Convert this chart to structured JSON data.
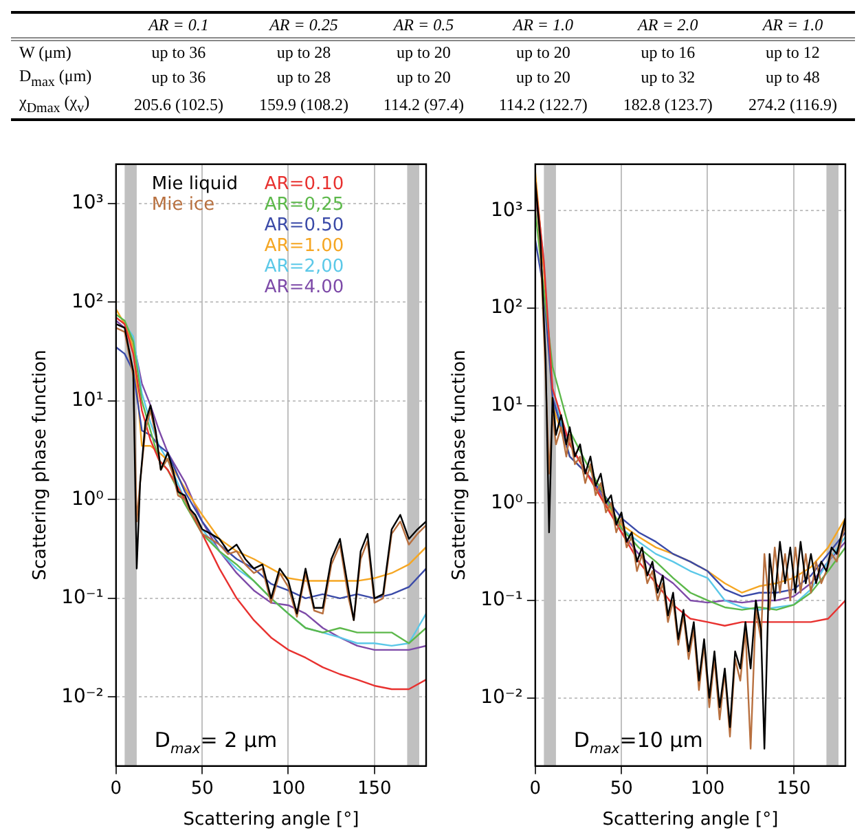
{
  "chart_data": [
    {
      "type": "other",
      "categories": [
        null,
        "AR = 0.1",
        "AR = 0.25",
        "AR = 0.5",
        "AR = 1.0",
        "AR = 2.0",
        "AR = 1.0"
      ],
      "y_categories": [
        "W (μm)",
        "D$_{max}$ (μm)",
        "χ$_{Dmax}$ (χ$_{v}$)"
      ],
      "cell_labels": [
        [
          "up to 36",
          "up to 28",
          "up to 20",
          "up to 20",
          "up to 16",
          "up to 12"
        ],
        [
          "up to 36",
          "up to 28",
          "up to 20",
          "up to 20",
          "up to 32",
          "up to 48"
        ],
        [
          "205.6 (102.5)",
          "159.9 (108.2)",
          "114.2 (97.4)",
          "114.2 (122.7)",
          "182.8 (123.7)",
          "274.2 (116.9)"
        ]
      ]
    },
    {
      "type": "line",
      "xlabel": "Scattering angle [°]",
      "ylabel": "Scattering phase function",
      "log": "y",
      "grid": true,
      "legend": "top",
      "line_style": "solid",
      "marker": "none",
      "xlim": [
        0,
        180
      ],
      "xticks": [
        0,
        50,
        100,
        150
      ],
      "ylim": [
        0.002,
        2500
      ],
      "yticks": [
        {
          "value": 0.01,
          "label": "10⁻²"
        },
        {
          "value": 0.1,
          "label": "10⁻¹"
        },
        {
          "value": 1,
          "label": "10⁰"
        },
        {
          "value": 10,
          "label": "10¹"
        },
        {
          "value": 100,
          "label": "10²"
        },
        {
          "value": 1000,
          "label": "10³"
        }
      ],
      "bands": [
        {
          "axis": "x",
          "from": 5,
          "to": 12,
          "color": "#c0c0c0"
        },
        {
          "axis": "x",
          "from": 169,
          "to": 176,
          "color": "#c0c0c0"
        }
      ],
      "annotations": [
        "D$_{max}$= 2 μm"
      ],
      "x": [
        0,
        5,
        10,
        15,
        20,
        25,
        30,
        40,
        50,
        60,
        70,
        80,
        90,
        100,
        110,
        120,
        130,
        140,
        150,
        160,
        170,
        180
      ],
      "series": [
        {
          "name": "Mie liquid",
          "color": "#000000",
          "x": [
            0,
            5,
            10,
            12,
            14,
            17,
            20,
            23,
            26,
            30,
            33,
            36,
            40,
            43,
            46,
            50,
            55,
            60,
            65,
            70,
            75,
            80,
            85,
            90,
            95,
            100,
            105,
            110,
            115,
            120,
            125,
            130,
            135,
            138,
            142,
            146,
            150,
            155,
            160,
            165,
            170,
            175,
            180
          ],
          "values": [
            60,
            55,
            20,
            0.2,
            1.5,
            6,
            9,
            5,
            2,
            3,
            2,
            1.2,
            1.1,
            0.8,
            0.7,
            0.5,
            0.45,
            0.4,
            0.3,
            0.35,
            0.25,
            0.2,
            0.22,
            0.1,
            0.2,
            0.15,
            0.07,
            0.2,
            0.08,
            0.08,
            0.25,
            0.4,
            0.12,
            0.06,
            0.3,
            0.45,
            0.1,
            0.11,
            0.5,
            0.7,
            0.4,
            0.5,
            0.6
          ]
        },
        {
          "name": "Mie ice",
          "color": "#b8703f",
          "x": [
            0,
            5,
            10,
            12,
            14,
            17,
            20,
            23,
            26,
            30,
            33,
            36,
            40,
            43,
            46,
            50,
            55,
            60,
            65,
            70,
            75,
            80,
            85,
            90,
            95,
            100,
            105,
            110,
            115,
            120,
            125,
            130,
            135,
            138,
            142,
            146,
            150,
            155,
            160,
            165,
            170,
            175,
            180
          ],
          "values": [
            55,
            50,
            18,
            0.6,
            1.5,
            5,
            8,
            4.5,
            2,
            2.6,
            1.8,
            1.1,
            1,
            0.75,
            0.65,
            0.45,
            0.4,
            0.35,
            0.28,
            0.3,
            0.22,
            0.18,
            0.2,
            0.09,
            0.18,
            0.13,
            0.065,
            0.18,
            0.075,
            0.07,
            0.22,
            0.35,
            0.1,
            0.06,
            0.25,
            0.38,
            0.09,
            0.1,
            0.45,
            0.6,
            0.35,
            0.45,
            0.55
          ]
        },
        {
          "name": "AR=0.10",
          "color": "#e8312f",
          "values": [
            70,
            60,
            30,
            8,
            4,
            2.5,
            2,
            1,
            0.45,
            0.2,
            0.1,
            0.06,
            0.04,
            0.03,
            0.025,
            0.02,
            0.017,
            0.015,
            0.013,
            0.012,
            0.012,
            0.015
          ]
        },
        {
          "name": "AR=0,25",
          "color": "#5cb84a",
          "values": [
            75,
            65,
            40,
            10,
            5,
            2.5,
            2,
            0.9,
            0.45,
            0.3,
            0.22,
            0.15,
            0.1,
            0.07,
            0.05,
            0.045,
            0.05,
            0.045,
            0.045,
            0.045,
            0.035,
            0.05
          ]
        },
        {
          "name": "AR=0.50",
          "color": "#3a4aa8",
          "values": [
            35,
            30,
            20,
            5,
            4.5,
            3.5,
            3,
            1.2,
            0.6,
            0.35,
            0.25,
            0.2,
            0.14,
            0.12,
            0.1,
            0.11,
            0.1,
            0.11,
            0.1,
            0.11,
            0.13,
            0.2
          ]
        },
        {
          "name": "AR=1.00",
          "color": "#f5a623",
          "values": [
            85,
            60,
            35,
            3.5,
            3.5,
            3,
            2.5,
            1.3,
            0.7,
            0.4,
            0.3,
            0.25,
            0.2,
            0.16,
            0.15,
            0.15,
            0.15,
            0.15,
            0.16,
            0.18,
            0.22,
            0.33
          ]
        },
        {
          "name": "AR=2,00",
          "color": "#5bc8e8",
          "values": [
            70,
            60,
            45,
            12,
            6,
            3.5,
            2.5,
            1,
            0.5,
            0.3,
            0.2,
            0.15,
            0.1,
            0.07,
            0.05,
            0.045,
            0.04,
            0.035,
            0.035,
            0.033,
            0.035,
            0.07
          ]
        },
        {
          "name": "AR=4.00",
          "color": "#7d4aa8",
          "values": [
            65,
            55,
            40,
            15,
            9,
            5,
            3,
            1.5,
            0.6,
            0.3,
            0.18,
            0.12,
            0.09,
            0.085,
            0.07,
            0.05,
            0.04,
            0.033,
            0.03,
            0.03,
            0.03,
            0.033
          ]
        }
      ]
    },
    {
      "type": "line",
      "xlabel": "Scattering angle [°]",
      "ylabel": "Scattering phase function",
      "log": "y",
      "grid": true,
      "line_style": "solid",
      "marker": "none",
      "xlim": [
        0,
        180
      ],
      "xticks": [
        0,
        50,
        100,
        150
      ],
      "ylim": [
        0.002,
        3000
      ],
      "yticks": [
        {
          "value": 0.01,
          "label": "10⁻²"
        },
        {
          "value": 0.1,
          "label": "10⁻¹"
        },
        {
          "value": 1,
          "label": "10⁰"
        },
        {
          "value": 10,
          "label": "10¹"
        },
        {
          "value": 100,
          "label": "10²"
        },
        {
          "value": 1000,
          "label": "10³"
        }
      ],
      "bands": [
        {
          "axis": "x",
          "from": 5,
          "to": 12,
          "color": "#c0c0c0"
        },
        {
          "axis": "x",
          "from": 169,
          "to": 176,
          "color": "#c0c0c0"
        }
      ],
      "annotations": [
        "D$_{max}$=10 μm"
      ],
      "x": [
        0,
        5,
        10,
        20,
        30,
        40,
        50,
        60,
        70,
        80,
        90,
        100,
        110,
        120,
        130,
        140,
        150,
        160,
        170,
        180
      ],
      "series": [
        {
          "color": "#000000",
          "x": [
            0,
            3,
            6,
            8,
            10,
            12,
            15,
            18,
            20,
            23,
            26,
            29,
            32,
            35,
            38,
            41,
            44,
            47,
            50,
            53,
            56,
            59,
            62,
            65,
            68,
            71,
            74,
            77,
            80,
            83,
            86,
            89,
            92,
            95,
            98,
            101,
            104,
            107,
            110,
            113,
            116,
            119,
            122,
            125,
            128,
            131,
            133,
            136,
            139,
            142,
            145,
            148,
            151,
            154,
            157,
            160,
            163,
            166,
            169,
            172,
            175,
            178,
            180
          ],
          "values": [
            2000,
            500,
            30,
            0.5,
            12,
            5,
            8,
            4,
            6,
            3,
            4,
            2,
            3,
            1.5,
            2,
            1,
            1.2,
            0.6,
            0.8,
            0.4,
            0.5,
            0.25,
            0.35,
            0.18,
            0.25,
            0.12,
            0.18,
            0.07,
            0.12,
            0.04,
            0.08,
            0.03,
            0.06,
            0.015,
            0.04,
            0.01,
            0.03,
            0.008,
            0.02,
            0.005,
            0.03,
            0.02,
            0.06,
            0.02,
            0.1,
            0.05,
            0.003,
            0.3,
            0.1,
            0.4,
            0.15,
            0.35,
            0.12,
            0.4,
            0.15,
            0.3,
            0.15,
            0.25,
            0.2,
            0.35,
            0.3,
            0.5,
            0.7
          ]
        },
        {
          "color": "#b8703f",
          "x": [
            0,
            3,
            6,
            8,
            10,
            12,
            15,
            18,
            20,
            23,
            26,
            29,
            32,
            35,
            38,
            41,
            44,
            47,
            50,
            53,
            56,
            59,
            62,
            65,
            68,
            71,
            74,
            77,
            80,
            83,
            86,
            89,
            92,
            95,
            98,
            101,
            104,
            107,
            110,
            113,
            116,
            119,
            122,
            125,
            128,
            131,
            133,
            136,
            139,
            142,
            145,
            148,
            151,
            154,
            157,
            160,
            163,
            166,
            169,
            172,
            175,
            178,
            180
          ],
          "values": [
            2000,
            400,
            20,
            2,
            8,
            4,
            6,
            3,
            5,
            2.5,
            3,
            1.6,
            2.5,
            1.2,
            1.6,
            0.8,
            1,
            0.5,
            0.7,
            0.35,
            0.45,
            0.2,
            0.3,
            0.15,
            0.2,
            0.1,
            0.15,
            0.06,
            0.1,
            0.035,
            0.07,
            0.025,
            0.05,
            0.012,
            0.035,
            0.008,
            0.025,
            0.006,
            0.018,
            0.004,
            0.025,
            0.015,
            0.05,
            0.003,
            0.08,
            0.04,
            0.3,
            0.08,
            0.35,
            0.12,
            0.3,
            0.1,
            0.35,
            0.12,
            0.3,
            0.12,
            0.25,
            0.15,
            0.2,
            0.3,
            0.25,
            0.45,
            0.6
          ]
        },
        {
          "color": "#e8312f",
          "values": [
            2000,
            300,
            15,
            4,
            2,
            1,
            0.5,
            0.25,
            0.15,
            0.09,
            0.065,
            0.06,
            0.055,
            0.06,
            0.06,
            0.06,
            0.06,
            0.06,
            0.065,
            0.1
          ]
        },
        {
          "color": "#5cb84a",
          "values": [
            1000,
            150,
            25,
            5.5,
            2.5,
            1.2,
            0.55,
            0.35,
            0.25,
            0.17,
            0.12,
            0.1,
            0.085,
            0.08,
            0.085,
            0.08,
            0.09,
            0.12,
            0.2,
            0.35
          ]
        },
        {
          "color": "#3a4aa8",
          "values": [
            500,
            150,
            12,
            3,
            2,
            1.2,
            0.7,
            0.5,
            0.4,
            0.3,
            0.25,
            0.2,
            0.13,
            0.11,
            0.12,
            0.12,
            0.13,
            0.18,
            0.3,
            0.5
          ]
        },
        {
          "color": "#f5a623",
          "values": [
            2500,
            250,
            10,
            3,
            2,
            1,
            0.6,
            0.45,
            0.35,
            0.3,
            0.25,
            0.2,
            0.15,
            0.12,
            0.14,
            0.15,
            0.17,
            0.22,
            0.35,
            0.7
          ]
        },
        {
          "color": "#5bc8e8",
          "values": [
            2000,
            300,
            15,
            3,
            2,
            1,
            0.55,
            0.4,
            0.3,
            0.25,
            0.2,
            0.17,
            0.1,
            0.085,
            0.08,
            0.085,
            0.09,
            0.13,
            0.25,
            0.45
          ]
        },
        {
          "color": "#7d4aa8",
          "values": [
            1500,
            250,
            12,
            4,
            2,
            1.1,
            0.5,
            0.3,
            0.2,
            0.15,
            0.1,
            0.095,
            0.1,
            0.095,
            0.1,
            0.1,
            0.11,
            0.15,
            0.25,
            0.4
          ]
        }
      ]
    }
  ]
}
